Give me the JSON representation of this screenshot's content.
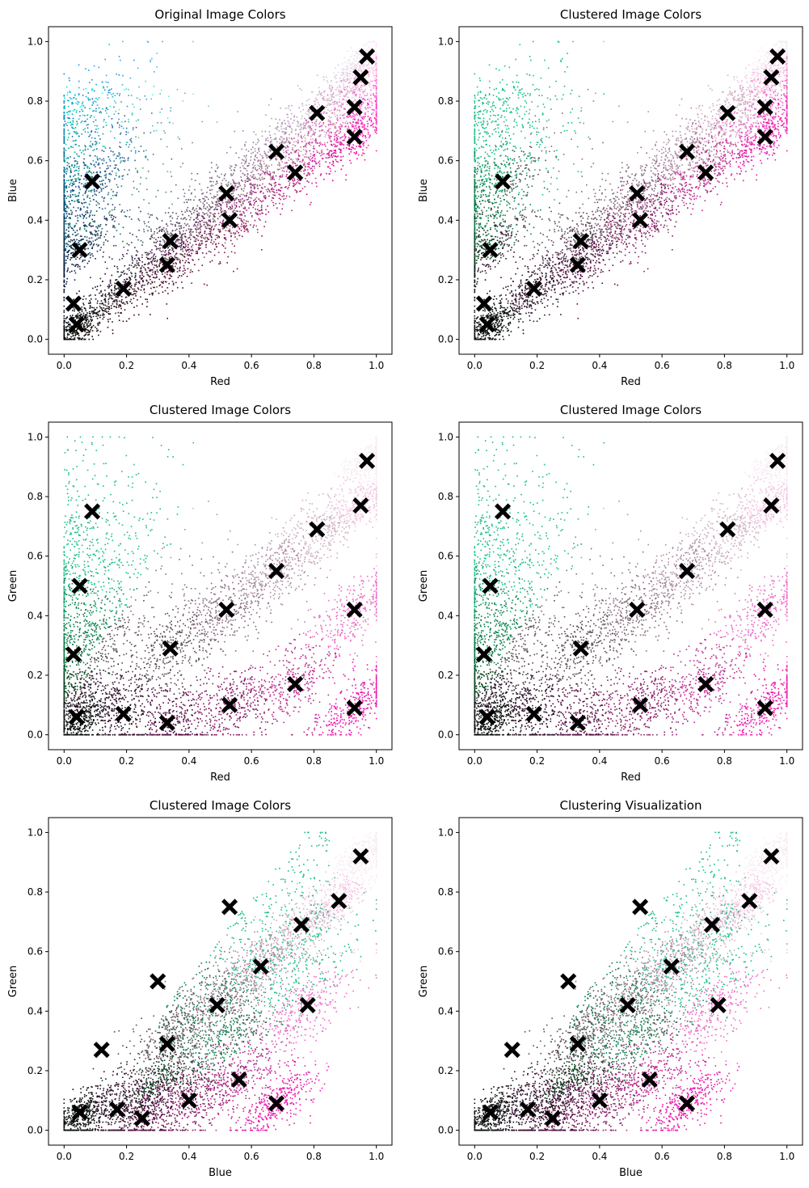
{
  "chart_data": [
    {
      "type": "scatter",
      "title": "Original Image Colors",
      "xlabel": "Red",
      "ylabel": "Blue",
      "xlim": [
        -0.05,
        1.05
      ],
      "ylim": [
        -0.05,
        1.05
      ],
      "xticks": [
        "0.0",
        "0.2",
        "0.4",
        "0.6",
        "0.8",
        "1.0"
      ],
      "yticks": [
        "0.0",
        "0.2",
        "0.4",
        "0.6",
        "0.8",
        "1.0"
      ],
      "grid": false,
      "cluster_centers": [
        {
          "x": 0.97,
          "y": 0.95
        },
        {
          "x": 0.95,
          "y": 0.88
        },
        {
          "x": 0.93,
          "y": 0.78
        },
        {
          "x": 0.93,
          "y": 0.68
        },
        {
          "x": 0.81,
          "y": 0.76
        },
        {
          "x": 0.74,
          "y": 0.56
        },
        {
          "x": 0.68,
          "y": 0.63
        },
        {
          "x": 0.53,
          "y": 0.4
        },
        {
          "x": 0.52,
          "y": 0.49
        },
        {
          "x": 0.34,
          "y": 0.33
        },
        {
          "x": 0.33,
          "y": 0.25
        },
        {
          "x": 0.19,
          "y": 0.17
        },
        {
          "x": 0.09,
          "y": 0.53
        },
        {
          "x": 0.05,
          "y": 0.3
        },
        {
          "x": 0.04,
          "y": 0.05
        },
        {
          "x": 0.03,
          "y": 0.12
        }
      ]
    },
    {
      "type": "scatter",
      "title": "Clustered Image Colors",
      "xlabel": "Red",
      "ylabel": "Blue",
      "xlim": [
        -0.05,
        1.05
      ],
      "ylim": [
        -0.05,
        1.05
      ],
      "xticks": [
        "0.0",
        "0.2",
        "0.4",
        "0.6",
        "0.8",
        "1.0"
      ],
      "yticks": [
        "0.0",
        "0.2",
        "0.4",
        "0.6",
        "0.8",
        "1.0"
      ],
      "grid": false,
      "cluster_centers": [
        {
          "x": 0.97,
          "y": 0.95
        },
        {
          "x": 0.95,
          "y": 0.88
        },
        {
          "x": 0.93,
          "y": 0.78
        },
        {
          "x": 0.93,
          "y": 0.68
        },
        {
          "x": 0.81,
          "y": 0.76
        },
        {
          "x": 0.74,
          "y": 0.56
        },
        {
          "x": 0.68,
          "y": 0.63
        },
        {
          "x": 0.53,
          "y": 0.4
        },
        {
          "x": 0.52,
          "y": 0.49
        },
        {
          "x": 0.34,
          "y": 0.33
        },
        {
          "x": 0.33,
          "y": 0.25
        },
        {
          "x": 0.19,
          "y": 0.17
        },
        {
          "x": 0.09,
          "y": 0.53
        },
        {
          "x": 0.05,
          "y": 0.3
        },
        {
          "x": 0.04,
          "y": 0.05
        },
        {
          "x": 0.03,
          "y": 0.12
        }
      ]
    },
    {
      "type": "scatter",
      "title": "Clustered Image Colors",
      "xlabel": "Red",
      "ylabel": "Green",
      "xlim": [
        -0.05,
        1.05
      ],
      "ylim": [
        -0.05,
        1.05
      ],
      "xticks": [
        "0.0",
        "0.2",
        "0.4",
        "0.6",
        "0.8",
        "1.0"
      ],
      "yticks": [
        "0.0",
        "0.2",
        "0.4",
        "0.6",
        "0.8",
        "1.0"
      ],
      "grid": false,
      "cluster_centers": [
        {
          "x": 0.97,
          "y": 0.92
        },
        {
          "x": 0.95,
          "y": 0.77
        },
        {
          "x": 0.93,
          "y": 0.42
        },
        {
          "x": 0.93,
          "y": 0.09
        },
        {
          "x": 0.81,
          "y": 0.69
        },
        {
          "x": 0.74,
          "y": 0.17
        },
        {
          "x": 0.68,
          "y": 0.55
        },
        {
          "x": 0.53,
          "y": 0.1
        },
        {
          "x": 0.52,
          "y": 0.42
        },
        {
          "x": 0.34,
          "y": 0.29
        },
        {
          "x": 0.33,
          "y": 0.04
        },
        {
          "x": 0.19,
          "y": 0.07
        },
        {
          "x": 0.09,
          "y": 0.75
        },
        {
          "x": 0.05,
          "y": 0.5
        },
        {
          "x": 0.04,
          "y": 0.06
        },
        {
          "x": 0.03,
          "y": 0.27
        }
      ]
    },
    {
      "type": "scatter",
      "title": "Clustered Image Colors",
      "xlabel": "Red",
      "ylabel": "Green",
      "xlim": [
        -0.05,
        1.05
      ],
      "ylim": [
        -0.05,
        1.05
      ],
      "xticks": [
        "0.0",
        "0.2",
        "0.4",
        "0.6",
        "0.8",
        "1.0"
      ],
      "yticks": [
        "0.0",
        "0.2",
        "0.4",
        "0.6",
        "0.8",
        "1.0"
      ],
      "grid": false,
      "cluster_centers": [
        {
          "x": 0.97,
          "y": 0.92
        },
        {
          "x": 0.95,
          "y": 0.77
        },
        {
          "x": 0.93,
          "y": 0.42
        },
        {
          "x": 0.93,
          "y": 0.09
        },
        {
          "x": 0.81,
          "y": 0.69
        },
        {
          "x": 0.74,
          "y": 0.17
        },
        {
          "x": 0.68,
          "y": 0.55
        },
        {
          "x": 0.53,
          "y": 0.1
        },
        {
          "x": 0.52,
          "y": 0.42
        },
        {
          "x": 0.34,
          "y": 0.29
        },
        {
          "x": 0.33,
          "y": 0.04
        },
        {
          "x": 0.19,
          "y": 0.07
        },
        {
          "x": 0.09,
          "y": 0.75
        },
        {
          "x": 0.05,
          "y": 0.5
        },
        {
          "x": 0.04,
          "y": 0.06
        },
        {
          "x": 0.03,
          "y": 0.27
        }
      ]
    },
    {
      "type": "scatter",
      "title": "Clustered Image Colors",
      "xlabel": "Blue",
      "ylabel": "Green",
      "xlim": [
        -0.05,
        1.05
      ],
      "ylim": [
        -0.05,
        1.05
      ],
      "xticks": [
        "0.0",
        "0.2",
        "0.4",
        "0.6",
        "0.8",
        "1.0"
      ],
      "yticks": [
        "0.0",
        "0.2",
        "0.4",
        "0.6",
        "0.8",
        "1.0"
      ],
      "grid": false,
      "cluster_centers": [
        {
          "x": 0.95,
          "y": 0.92
        },
        {
          "x": 0.88,
          "y": 0.77
        },
        {
          "x": 0.78,
          "y": 0.42
        },
        {
          "x": 0.68,
          "y": 0.09
        },
        {
          "x": 0.76,
          "y": 0.69
        },
        {
          "x": 0.56,
          "y": 0.17
        },
        {
          "x": 0.63,
          "y": 0.55
        },
        {
          "x": 0.4,
          "y": 0.1
        },
        {
          "x": 0.49,
          "y": 0.42
        },
        {
          "x": 0.33,
          "y": 0.29
        },
        {
          "x": 0.25,
          "y": 0.04
        },
        {
          "x": 0.17,
          "y": 0.07
        },
        {
          "x": 0.53,
          "y": 0.75
        },
        {
          "x": 0.3,
          "y": 0.5
        },
        {
          "x": 0.05,
          "y": 0.06
        },
        {
          "x": 0.12,
          "y": 0.27
        }
      ]
    },
    {
      "type": "scatter",
      "title": "Clustering Visualization",
      "xlabel": "Blue",
      "ylabel": "Green",
      "xlim": [
        -0.05,
        1.05
      ],
      "ylim": [
        -0.05,
        1.05
      ],
      "xticks": [
        "0.0",
        "0.2",
        "0.4",
        "0.6",
        "0.8",
        "1.0"
      ],
      "yticks": [
        "0.0",
        "0.2",
        "0.4",
        "0.6",
        "0.8",
        "1.0"
      ],
      "grid": false,
      "cluster_centers": [
        {
          "x": 0.95,
          "y": 0.92
        },
        {
          "x": 0.88,
          "y": 0.77
        },
        {
          "x": 0.78,
          "y": 0.42
        },
        {
          "x": 0.68,
          "y": 0.09
        },
        {
          "x": 0.76,
          "y": 0.69
        },
        {
          "x": 0.56,
          "y": 0.17
        },
        {
          "x": 0.63,
          "y": 0.55
        },
        {
          "x": 0.4,
          "y": 0.1
        },
        {
          "x": 0.49,
          "y": 0.42
        },
        {
          "x": 0.33,
          "y": 0.29
        },
        {
          "x": 0.25,
          "y": 0.04
        },
        {
          "x": 0.17,
          "y": 0.07
        },
        {
          "x": 0.53,
          "y": 0.75
        },
        {
          "x": 0.3,
          "y": 0.5
        },
        {
          "x": 0.05,
          "y": 0.06
        },
        {
          "x": 0.12,
          "y": 0.27
        }
      ]
    }
  ]
}
